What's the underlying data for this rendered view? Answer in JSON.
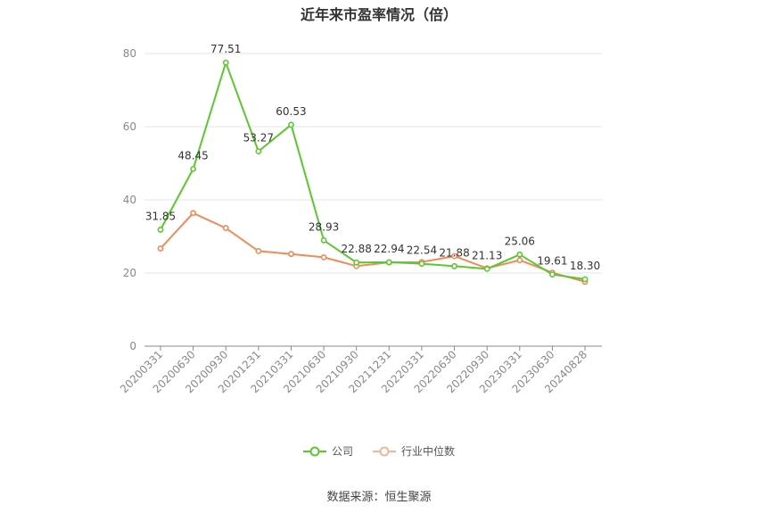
{
  "chart_data": {
    "type": "line",
    "title": "近年来市盈率情况（倍）",
    "categories": [
      "20200331",
      "20200630",
      "20200930",
      "20201231",
      "20210331",
      "20210630",
      "20210930",
      "20211231",
      "20220331",
      "20220630",
      "20220930",
      "20230331",
      "20230630",
      "20240828"
    ],
    "ylim": [
      0,
      80
    ],
    "yticks": [
      0,
      20,
      40,
      60,
      80
    ],
    "grid": true,
    "legend_position": "bottom",
    "series": [
      {
        "name": "公司",
        "color": "#5cc72f",
        "values": [
          31.85,
          48.45,
          77.51,
          53.27,
          60.53,
          28.93,
          22.88,
          22.94,
          22.54,
          21.88,
          21.13,
          25.06,
          19.61,
          18.3
        ],
        "labels": [
          "31.85",
          "48.45",
          "77.51",
          "53.27",
          "60.53",
          "28.93",
          "22.88",
          "22.94",
          "22.54",
          "21.88",
          "21.13",
          "25.06",
          "19.61",
          "18.30"
        ]
      },
      {
        "name": "行业中位数",
        "color": "#ef8a5a",
        "values": [
          26.7,
          36.4,
          32.3,
          26.0,
          25.2,
          24.3,
          21.9,
          22.9,
          23.0,
          24.6,
          21.3,
          23.5,
          20.1,
          17.6
        ]
      }
    ]
  },
  "source": "数据来源：恒生聚源"
}
